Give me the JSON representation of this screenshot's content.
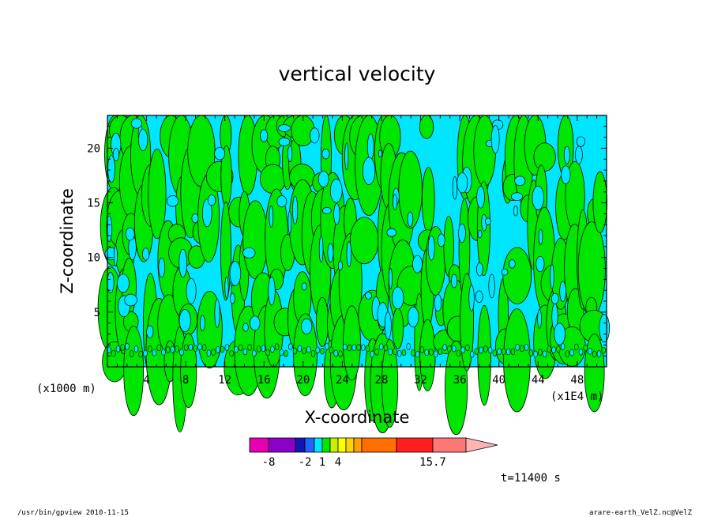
{
  "chart_data": {
    "type": "heatmap",
    "title": "vertical velocity",
    "xlabel": "X-coordinate",
    "ylabel": "Z-coordinate",
    "x_unit_left": "(x1000 m)",
    "x_unit_right": "(x1E4 m)",
    "xticks": [
      "4",
      "8",
      "12",
      "16",
      "20",
      "24",
      "28",
      "32",
      "36",
      "40",
      "44",
      "48"
    ],
    "yticks": [
      "5",
      "10",
      "15",
      "20"
    ],
    "xlim": [
      0,
      51
    ],
    "ylim": [
      0,
      23
    ],
    "colorbar": {
      "labels": [
        {
          "text": "-8",
          "value": -8
        },
        {
          "text": "-2",
          "value": -2
        },
        {
          "text": "1",
          "value": 1
        },
        {
          "text": "4",
          "value": 4
        },
        {
          "text": "15.7",
          "value": 15.7
        }
      ],
      "bins": [
        {
          "color": "#e600b4"
        },
        {
          "color": "#8c00c8"
        },
        {
          "color": "#1414b4"
        },
        {
          "color": "#1e64ff"
        },
        {
          "color": "#00e6ff"
        },
        {
          "color": "#00e600"
        },
        {
          "color": "#c8f000"
        },
        {
          "color": "#ffff00"
        },
        {
          "color": "#ffd200"
        },
        {
          "color": "#ffa000"
        },
        {
          "color": "#ff6e00"
        },
        {
          "color": "#ff1e1e"
        },
        {
          "color": "#ff7878"
        },
        {
          "color": "#ffb4b4"
        }
      ],
      "field_colors": {
        "negative": "#00e6ff",
        "positive": "#00e600"
      }
    },
    "time_label": "t=11400 s",
    "footer_left": "/usr/bin/gpview  2010-11-15",
    "footer_right": "arare-earth_VelZ.nc@VelZ"
  }
}
